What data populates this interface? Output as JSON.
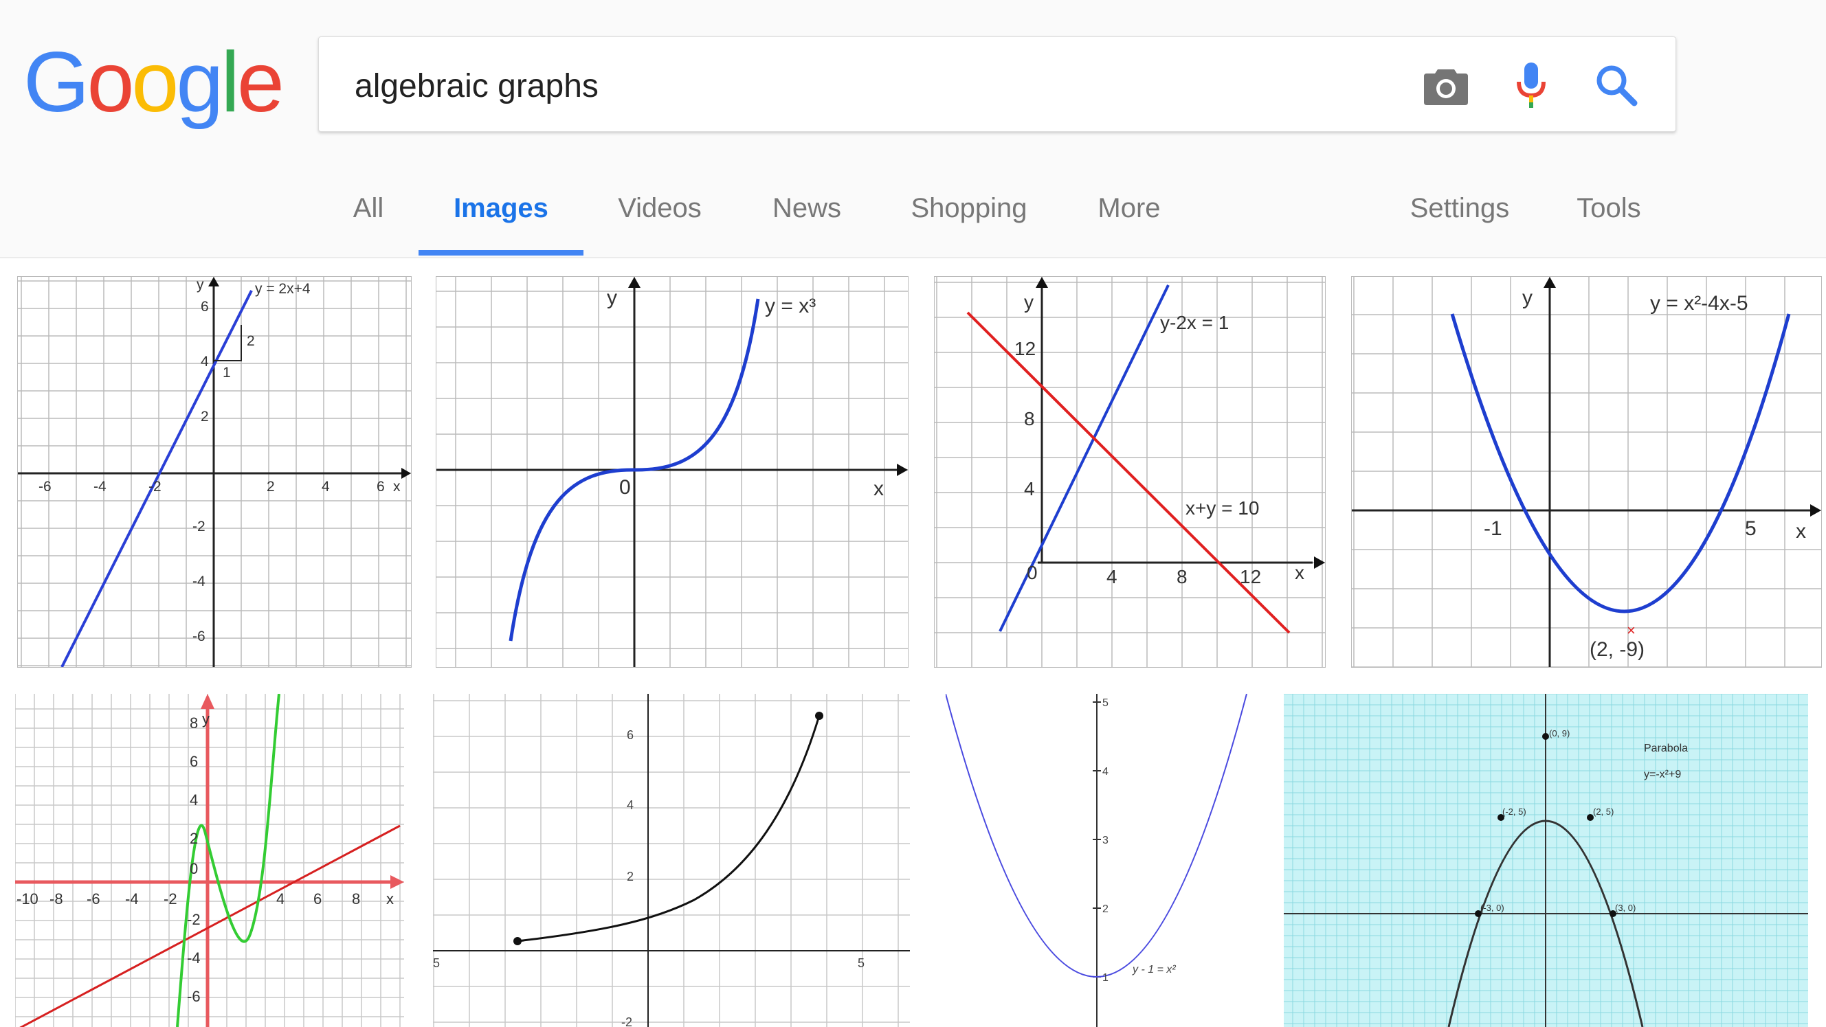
{
  "logo": {
    "letters": [
      "G",
      "o",
      "o",
      "g",
      "l",
      "e"
    ],
    "colors": [
      "#4285f4",
      "#ea4335",
      "#fbbc05",
      "#4285f4",
      "#34a853",
      "#ea4335"
    ]
  },
  "search": {
    "query": "algebraic graphs"
  },
  "tabs": [
    {
      "label": "All"
    },
    {
      "label": "Images"
    },
    {
      "label": "Videos"
    },
    {
      "label": "News"
    },
    {
      "label": "Shopping"
    },
    {
      "label": "More"
    },
    {
      "label": "Settings"
    },
    {
      "label": "Tools"
    }
  ],
  "results": [
    {
      "equation": "y = 2x+4",
      "ticks": [
        "-6",
        "-4",
        "-2",
        "2",
        "4",
        "6",
        "-2",
        "-4",
        "-6",
        "2",
        "4",
        "6"
      ],
      "axis_x": "x",
      "axis_y": "y",
      "slope_rise": "2",
      "slope_run": "1"
    },
    {
      "equation": "y = x³",
      "axis_x": "x",
      "axis_y": "y",
      "origin": "0"
    },
    {
      "equation_1": "y-2x = 1",
      "equation_2": "x+y = 10",
      "axis_x": "x",
      "axis_y": "y",
      "ticks_x": [
        "4",
        "8",
        "12"
      ],
      "ticks_y": [
        "12",
        "8",
        "4"
      ],
      "origin": "0"
    },
    {
      "equation": "y = x²-4x-5",
      "axis_x": "x",
      "axis_y": "y",
      "root_left": "-1",
      "root_right": "5",
      "vertex": "(2, -9)"
    },
    {
      "ticks_x": [
        "-10",
        "-8",
        "-6",
        "-4",
        "-2",
        "4",
        "6",
        "8"
      ],
      "ticks_y": [
        "8",
        "6",
        "4",
        "2",
        "0",
        "-2",
        "-4",
        "-6"
      ],
      "axis_x": "x",
      "axis_y": "y"
    },
    {
      "ticks_x": [
        "5",
        "5"
      ],
      "ticks_y": [
        "6",
        "4",
        "2",
        "-2"
      ]
    },
    {
      "ticks_y": [
        "5",
        "4",
        "3",
        "2",
        "1"
      ],
      "equation": "y - 1 = x²"
    },
    {
      "title": "Parabola",
      "equation": "y=-x²+9",
      "points": [
        "(0, 9)",
        "(-2, 5)",
        "(2, 5)",
        "(-3, 0)",
        "(3, 0)"
      ]
    }
  ]
}
